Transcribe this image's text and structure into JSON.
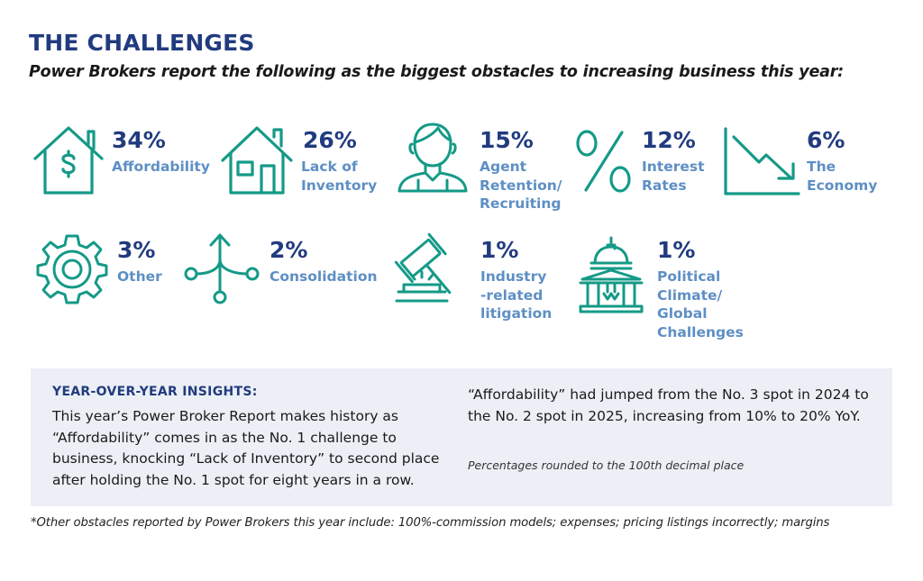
{
  "title": "THE CHALLENGES",
  "subtitle": "Power Brokers report the following as the biggest obstacles to increasing business this year:",
  "colors": {
    "navy": "#213b7f",
    "teal": "#149a87",
    "label_blue": "#5e8fc4",
    "panel": "#eceff5"
  },
  "challenges": [
    {
      "percent": "34%",
      "label": "Affordability",
      "icon": "house-dollar-icon"
    },
    {
      "percent": "26%",
      "label": "Lack of\nInventory",
      "icon": "house-icon"
    },
    {
      "percent": "15%",
      "label": "Agent\nRetention/\nRecruiting",
      "icon": "person-icon"
    },
    {
      "percent": "12%",
      "label": "Interest\nRates",
      "icon": "percent-icon"
    },
    {
      "percent": "6%",
      "label": "The\nEconomy",
      "icon": "trend-down-icon"
    },
    {
      "percent": "3%",
      "label": "Other",
      "icon": "gear-icon"
    },
    {
      "percent": "2%",
      "label": "Consolidation",
      "icon": "merge-arrows-icon"
    },
    {
      "percent": "1%",
      "label": "Industry\n-related\nlitigation",
      "icon": "gavel-icon"
    },
    {
      "percent": "1%",
      "label": "Political\nClimate/\nGlobal\nChallenges",
      "icon": "capitol-icon"
    }
  ],
  "insights": {
    "heading": "YEAR-OVER-YEAR INSIGHTS:",
    "left_text": "This year’s Power Broker Report makes history as “Affordability” comes in as the No. 1 challenge to business, knocking “Lack of Inventory” to second place after holding the No. 1 spot for eight years in a row.",
    "right_text": "“Affordability” had jumped  from the No. 3 spot in 2024 to the No. 2 spot in 2025, increasing from 10% to 20% YoY.",
    "note": "Percentages rounded to the 100th decimal place"
  },
  "footnote": "*Other obstacles reported by Power Brokers this year include: 100%-commission models; expenses; pricing listings incorrectly; margins"
}
